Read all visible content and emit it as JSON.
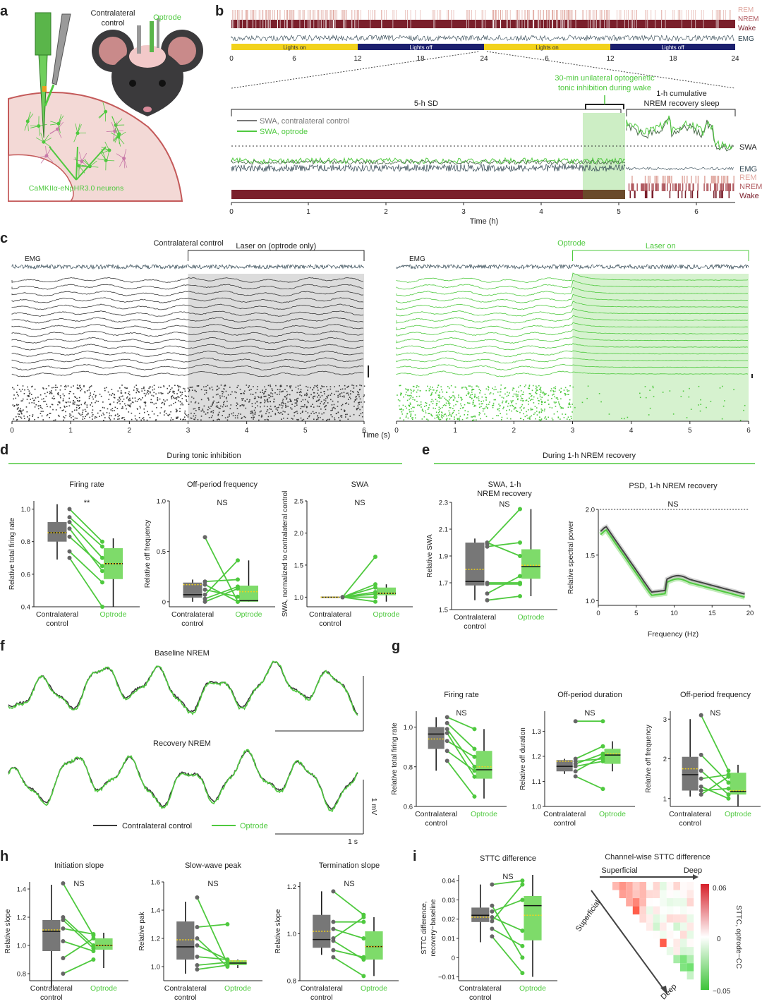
{
  "figure": {
    "panel_letters": [
      "a",
      "b",
      "c",
      "d",
      "e",
      "f",
      "g",
      "h",
      "i"
    ]
  },
  "panel_a": {
    "contralateral_label": "Contralateral control",
    "optrode_label": "Optrode",
    "neurons_label": "CaMKIIα-eNpHR3.0 neurons",
    "colors": {
      "green": "#4fc93f",
      "mouse": "#3b3a3c",
      "cortex": "#f3d9d6",
      "cortex_edge": "#c45a5a"
    }
  },
  "panel_b": {
    "state_labels": [
      "REM",
      "NREM",
      "Wake"
    ],
    "emg_label": "EMG",
    "light_labels": [
      "Lights on",
      "Lights off",
      "Lights on",
      "Lights off"
    ],
    "top_ticks": [
      "0",
      "6",
      "12",
      "18",
      "24",
      "6",
      "12",
      "18",
      "24"
    ],
    "swa_contra_legend": "SWA, contralateral control",
    "swa_opt_legend": "SWA, optrode",
    "sd_label": "5-h SD",
    "opto_note": "30-min unilateral optogenetic tonic inhibition during wake",
    "recovery_note": "1-h cumulative NREM recovery sleep",
    "swa_label": "SWA",
    "emg_label2": "EMG",
    "rem_label": "REM",
    "nrem_label": "NREM",
    "wake_label": "Wake",
    "bottom_ticks": [
      "0",
      "1",
      "2",
      "3",
      "4",
      "5",
      "6"
    ],
    "xlabel": "Time (h)",
    "colors": {
      "rem": "#e0a8a0",
      "nrem": "#b05a60",
      "wake": "#7a1f2b",
      "emg": "#2e4450",
      "yellow": "#f2d21c",
      "navy": "#1b1f6e"
    }
  },
  "panel_c": {
    "left_title": "Contralateral control",
    "left_laser": "Laser on (optrode only)",
    "right_title": "Optrode",
    "right_laser": "Laser on",
    "emg_label": "EMG",
    "ticks": [
      "0",
      "1",
      "2",
      "3",
      "4",
      "5",
      "6"
    ],
    "xlabel": "Time (s)"
  },
  "panel_d": {
    "header": "During tonic inhibition",
    "plots": [
      {
        "title": "Firing rate",
        "ylabel": "Relative total firing rate",
        "sig": "**",
        "yticks": [
          "0.4",
          "0.6",
          "0.8",
          "1.0"
        ],
        "ymin": 0.4,
        "ymax": 1.05,
        "pairs": [
          [
            1.0,
            0.8
          ],
          [
            0.95,
            0.77
          ],
          [
            0.92,
            0.7
          ],
          [
            0.88,
            0.62
          ],
          [
            0.83,
            0.65
          ],
          [
            0.74,
            0.55
          ],
          [
            0.7,
            0.4
          ]
        ],
        "box_l": {
          "q1": 0.8,
          "med": 0.855,
          "mean": 0.855,
          "q3": 0.92,
          "lo": 0.69,
          "hi": 1.03
        },
        "box_r": {
          "q1": 0.57,
          "med": 0.665,
          "mean": 0.665,
          "q3": 0.76,
          "lo": 0.4,
          "hi": 0.82
        }
      },
      {
        "title": "Off-period frequency",
        "ylabel": "Relative off frequency",
        "sig": "NS",
        "yticks": [
          "0",
          "0.5",
          "1.0"
        ],
        "ymin": -0.05,
        "ymax": 1.0,
        "pairs": [
          [
            0.64,
            0.0
          ],
          [
            0.2,
            0.22
          ],
          [
            0.17,
            0.0
          ],
          [
            0.12,
            0.05
          ],
          [
            0.07,
            0.41
          ],
          [
            0.03,
            0.15
          ],
          [
            0.0,
            0.13
          ]
        ],
        "box_l": {
          "q1": 0.04,
          "med": 0.07,
          "mean": 0.17,
          "q3": 0.19,
          "lo": 0.0,
          "hi": 0.22
        },
        "box_r": {
          "q1": 0.0,
          "med": 0.01,
          "mean": 0.1,
          "q3": 0.16,
          "lo": 0.0,
          "hi": 0.41
        }
      },
      {
        "title": "SWA",
        "ylabel": "SWA, normalized to contralateral control",
        "sig": "NS",
        "yticks": [
          "1.0",
          "1.5",
          "2.0",
          "2.5"
        ],
        "ymin": 0.85,
        "ymax": 2.5,
        "pairs": [
          [
            1.0,
            1.63
          ],
          [
            1.0,
            1.2
          ],
          [
            1.0,
            1.15
          ],
          [
            1.0,
            1.08
          ],
          [
            1.0,
            1.05
          ],
          [
            1.0,
            1.0
          ],
          [
            1.0,
            0.93
          ]
        ],
        "box_l": {
          "q1": 1.0,
          "med": 1.0,
          "mean": 1.0,
          "q3": 1.0,
          "lo": 1.0,
          "hi": 1.0
        },
        "box_r": {
          "q1": 1.03,
          "med": 1.06,
          "mean": 1.06,
          "q3": 1.15,
          "lo": 0.93,
          "hi": 1.2
        }
      }
    ],
    "xl": "Contralateral control",
    "xr": "Optrode"
  },
  "panel_e": {
    "header": "During 1-h NREM recovery",
    "swa_title": "SWA, 1-h NREM recovery",
    "swa_ylabel": "Relative SWA",
    "swa_sig": "NS",
    "swa_yticks": [
      "1.5",
      "1.7",
      "1.9",
      "2.1",
      "2.3"
    ],
    "swa_pairs": [
      [
        2.0,
        1.9
      ],
      [
        1.99,
        2.25
      ],
      [
        1.97,
        2.0
      ],
      [
        1.7,
        1.7
      ],
      [
        1.69,
        1.69
      ],
      [
        1.62,
        1.75
      ],
      [
        1.57,
        1.6
      ]
    ],
    "psd_title": "PSD, 1-h NREM recovery",
    "psd_ylabel": "Relative spectral power",
    "psd_sig": "NS",
    "psd_yticks": [
      "1.0",
      "1.5",
      "2.0"
    ],
    "psd_xticks": [
      "0",
      "5",
      "10",
      "15",
      "20"
    ],
    "psd_xlabel": "Frequency (Hz)",
    "xl": "Contralateral control",
    "xr": "Optrode"
  },
  "panel_f": {
    "baseline_title": "Baseline NREM",
    "recovery_title": "Recovery NREM",
    "legend_contra": "Contralateral control",
    "legend_opt": "Optrode",
    "scale_v": "1 mV",
    "scale_h": "1 s"
  },
  "panel_g": {
    "plots": [
      {
        "title": "Firing rate",
        "ylabel": "Relative total firing rate",
        "sig": "NS",
        "yticks": [
          "0.6",
          "0.8",
          "1.0"
        ],
        "ymin": 0.6,
        "ymax": 1.08,
        "pairs": [
          [
            1.05,
            0.99
          ],
          [
            1.02,
            0.89
          ],
          [
            0.99,
            0.8
          ],
          [
            0.97,
            0.75
          ],
          [
            0.93,
            0.85
          ],
          [
            0.88,
            0.78
          ],
          [
            0.83,
            0.65
          ]
        ],
        "box_l": {
          "q1": 0.89,
          "med": 0.965,
          "mean": 0.94,
          "q3": 1.0,
          "lo": 0.78,
          "hi": 1.05
        },
        "box_r": {
          "q1": 0.74,
          "med": 0.785,
          "mean": 0.8,
          "q3": 0.88,
          "lo": 0.64,
          "hi": 0.99
        }
      },
      {
        "title": "Off-period duration",
        "ylabel": "Relative off duration",
        "sig": "NS",
        "yticks": [
          "1.0",
          "1.1",
          "1.2",
          "1.3"
        ],
        "ymin": 1.0,
        "ymax": 1.38,
        "pairs": [
          [
            1.34,
            1.34
          ],
          [
            1.19,
            1.24
          ],
          [
            1.18,
            1.19
          ],
          [
            1.17,
            1.21
          ],
          [
            1.16,
            1.18
          ],
          [
            1.14,
            1.2
          ],
          [
            1.12,
            1.07
          ]
        ],
        "box_l": {
          "q1": 1.14,
          "med": 1.16,
          "mean": 1.18,
          "q3": 1.185,
          "lo": 1.13,
          "hi": 1.19
        },
        "box_r": {
          "q1": 1.17,
          "med": 1.205,
          "mean": 1.21,
          "q3": 1.23,
          "lo": 1.14,
          "hi": 1.26
        }
      },
      {
        "title": "Off-period frequency",
        "ylabel": "Relative off frequency",
        "sig": "NS",
        "yticks": [
          "1",
          "2",
          "3"
        ],
        "ymin": 0.8,
        "ymax": 3.2,
        "pairs": [
          [
            3.1,
            1.7
          ],
          [
            2.1,
            1.4
          ],
          [
            1.7,
            1.1
          ],
          [
            1.5,
            1.6
          ],
          [
            1.3,
            1.0
          ],
          [
            1.2,
            1.25
          ],
          [
            1.1,
            1.55
          ]
        ],
        "box_l": {
          "q1": 1.2,
          "med": 1.6,
          "mean": 1.75,
          "q3": 2.05,
          "lo": 1.05,
          "hi": 3.0
        },
        "box_r": {
          "q1": 1.1,
          "med": 1.18,
          "mean": 1.2,
          "q3": 1.65,
          "lo": 0.8,
          "hi": 1.85
        }
      }
    ],
    "xl": "Contralateral control",
    "xr": "Optrode"
  },
  "panel_h": {
    "plots": [
      {
        "title": "Initiation slope",
        "ylabel": "Relative slope",
        "sig": "NS",
        "yticks": [
          "0.8",
          "1.0",
          "1.2",
          "1.4"
        ],
        "ymin": 0.75,
        "ymax": 1.45,
        "pairs": [
          [
            1.44,
            1.07
          ],
          [
            1.2,
            1.0
          ],
          [
            1.18,
            0.98
          ],
          [
            1.12,
            1.08
          ],
          [
            1.03,
            0.96
          ],
          [
            0.91,
            1.05
          ],
          [
            0.8,
            0.9
          ]
        ],
        "box_l": {
          "q1": 0.96,
          "med": 1.1,
          "mean": 1.11,
          "q3": 1.18,
          "lo": 0.7,
          "hi": 1.43
        },
        "box_r": {
          "q1": 0.97,
          "med": 1.0,
          "mean": 1.0,
          "q3": 1.05,
          "lo": 0.84,
          "hi": 1.09
        }
      },
      {
        "title": "Slow-wave peak",
        "ylabel": "Relative pak",
        "sig": "NS",
        "yticks": [
          "1.0",
          "1.2",
          "1.4",
          "1.6"
        ],
        "ymin": 0.9,
        "ymax": 1.6,
        "pairs": [
          [
            1.49,
            1.02
          ],
          [
            1.28,
            1.3
          ],
          [
            1.2,
            1.0
          ],
          [
            1.15,
            1.05
          ],
          [
            1.07,
            1.05
          ],
          [
            1.01,
            1.03
          ],
          [
            0.98,
            1.01
          ]
        ],
        "box_l": {
          "q1": 1.05,
          "med": 1.14,
          "mean": 1.19,
          "q3": 1.32,
          "lo": 0.95,
          "hi": 1.46
        },
        "box_r": {
          "q1": 1.01,
          "med": 1.025,
          "mean": 1.04,
          "q3": 1.045,
          "lo": 0.99,
          "hi": 1.05
        }
      },
      {
        "title": "Termination slope",
        "ylabel": "Relative slope",
        "sig": "NS",
        "yticks": [
          "0.8",
          "1.0",
          "1.2"
        ],
        "ymin": 0.8,
        "ymax": 1.22,
        "pairs": [
          [
            1.18,
            1.08
          ],
          [
            1.05,
            1.05
          ],
          [
            1.02,
            0.98
          ],
          [
            0.98,
            1.07
          ],
          [
            0.97,
            0.89
          ],
          [
            0.93,
            0.9
          ],
          [
            0.9,
            0.82
          ]
        ],
        "box_l": {
          "q1": 0.94,
          "med": 0.975,
          "mean": 1.01,
          "q3": 1.08,
          "lo": 0.91,
          "hi": 1.18
        },
        "box_r": {
          "q1": 0.89,
          "med": 0.945,
          "mean": 0.945,
          "q3": 1.01,
          "lo": 0.82,
          "hi": 1.07
        }
      }
    ],
    "xl": "Contralateral control",
    "xr": "Optrode"
  },
  "panel_i": {
    "stt_title": "STTC difference",
    "stt_ylabel": "STTC difference, recovery−baseline",
    "stt_sig": "NS",
    "stt_yticks": [
      "−0.01",
      "0",
      "0.01",
      "0.02",
      "0.03",
      "0.04"
    ],
    "stt_ymin": -0.012,
    "stt_ymax": 0.043,
    "stt_pairs": [
      [
        0.038,
        0.04
      ],
      [
        0.027,
        0.0
      ],
      [
        0.024,
        0.03
      ],
      [
        0.021,
        0.014
      ],
      [
        0.019,
        0.038
      ],
      [
        0.015,
        0.006
      ],
      [
        0.011,
        -0.008
      ]
    ],
    "stt_box_l": {
      "q1": 0.0185,
      "med": 0.022,
      "mean": 0.021,
      "q3": 0.026,
      "lo": 0.008,
      "hi": 0.038
    },
    "stt_box_r": {
      "q1": 0.009,
      "med": 0.027,
      "mean": 0.022,
      "q3": 0.032,
      "lo": -0.01,
      "hi": 0.043
    },
    "heat_title": "Channel-wise STTC difference",
    "superficial_top": "Superficial",
    "deep_top": "Deep",
    "superficial_side": "Superficial",
    "deep_side": "Deep",
    "cbar_ticks": [
      "0.06",
      "0",
      "−0.05"
    ],
    "cbar_label": "STTC, optrode−CC",
    "xl": "Contralateral control",
    "xr": "Optrode"
  }
}
